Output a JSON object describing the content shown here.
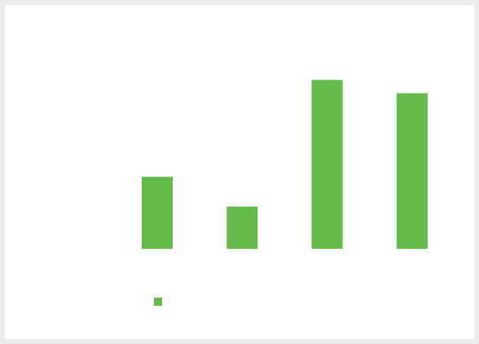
{
  "chart_data": {
    "type": "bar",
    "categories": [
      "",
      "",
      "",
      ""
    ],
    "values": [
      87,
      51,
      204,
      188
    ],
    "ylim": [
      0,
      220
    ],
    "grid": false,
    "legend_position": "bottom",
    "series": [
      {
        "name": "",
        "color": "#62bb4a",
        "values": [
          87,
          51,
          204,
          188
        ]
      }
    ]
  }
}
